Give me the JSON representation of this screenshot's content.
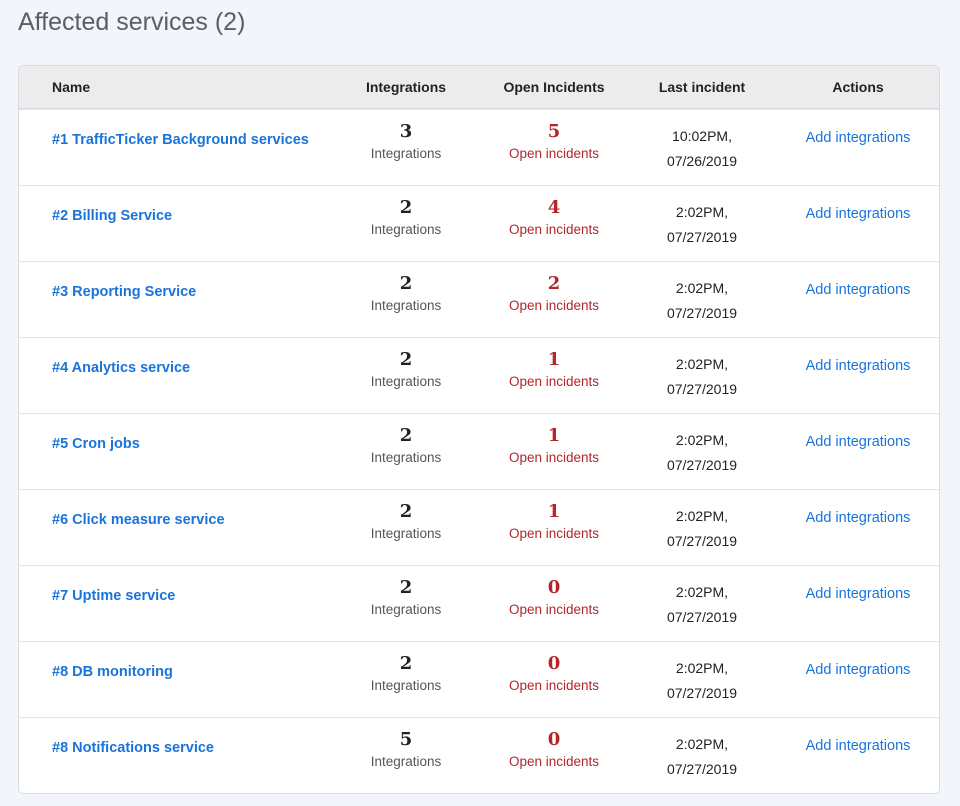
{
  "header": {
    "title": "Affected services (2)"
  },
  "table": {
    "columns": [
      "Name",
      "Integrations",
      "Open Incidents",
      "Last incident",
      "Actions"
    ],
    "rows": [
      {
        "name": "#1 TrafficTicker Background services",
        "integrations": 3,
        "integrations_label": "Integrations",
        "open_incidents": 5,
        "open_incidents_label": "Open incidents",
        "time": "10:02PM,",
        "date": "07/26/2019",
        "action": "Add integrations"
      },
      {
        "name": "#2 Billing Service",
        "integrations": 2,
        "integrations_label": "Integrations",
        "open_incidents": 4,
        "open_incidents_label": "Open incidents",
        "time": "2:02PM,",
        "date": "07/27/2019",
        "action": "Add integrations"
      },
      {
        "name": "#3 Reporting Service",
        "integrations": 2,
        "integrations_label": "Integrations",
        "open_incidents": 2,
        "open_incidents_label": "Open incidents",
        "time": "2:02PM,",
        "date": "07/27/2019",
        "action": "Add integrations"
      },
      {
        "name": "#4 Analytics service",
        "integrations": 2,
        "integrations_label": "Integrations",
        "open_incidents": 1,
        "open_incidents_label": "Open incidents",
        "time": "2:02PM,",
        "date": "07/27/2019",
        "action": "Add integrations"
      },
      {
        "name": "#5 Cron jobs",
        "integrations": 2,
        "integrations_label": "Integrations",
        "open_incidents": 1,
        "open_incidents_label": "Open incidents",
        "time": "2:02PM,",
        "date": "07/27/2019",
        "action": "Add integrations"
      },
      {
        "name": "#6 Click measure service",
        "integrations": 2,
        "integrations_label": "Integrations",
        "open_incidents": 1,
        "open_incidents_label": "Open incidents",
        "time": "2:02PM,",
        "date": "07/27/2019",
        "action": "Add integrations"
      },
      {
        "name": "#7 Uptime service",
        "integrations": 2,
        "integrations_label": "Integrations",
        "open_incidents": 0,
        "open_incidents_label": "Open incidents",
        "time": "2:02PM,",
        "date": "07/27/2019",
        "action": "Add integrations"
      },
      {
        "name": "#8 DB monitoring",
        "integrations": 2,
        "integrations_label": "Integrations",
        "open_incidents": 0,
        "open_incidents_label": "Open incidents",
        "time": "2:02PM,",
        "date": "07/27/2019",
        "action": "Add integrations"
      },
      {
        "name": "#8 Notifications service",
        "integrations": 5,
        "integrations_label": "Integrations",
        "open_incidents": 0,
        "open_incidents_label": "Open incidents",
        "time": "2:02PM,",
        "date": "07/27/2019",
        "action": "Add integrations"
      }
    ]
  }
}
